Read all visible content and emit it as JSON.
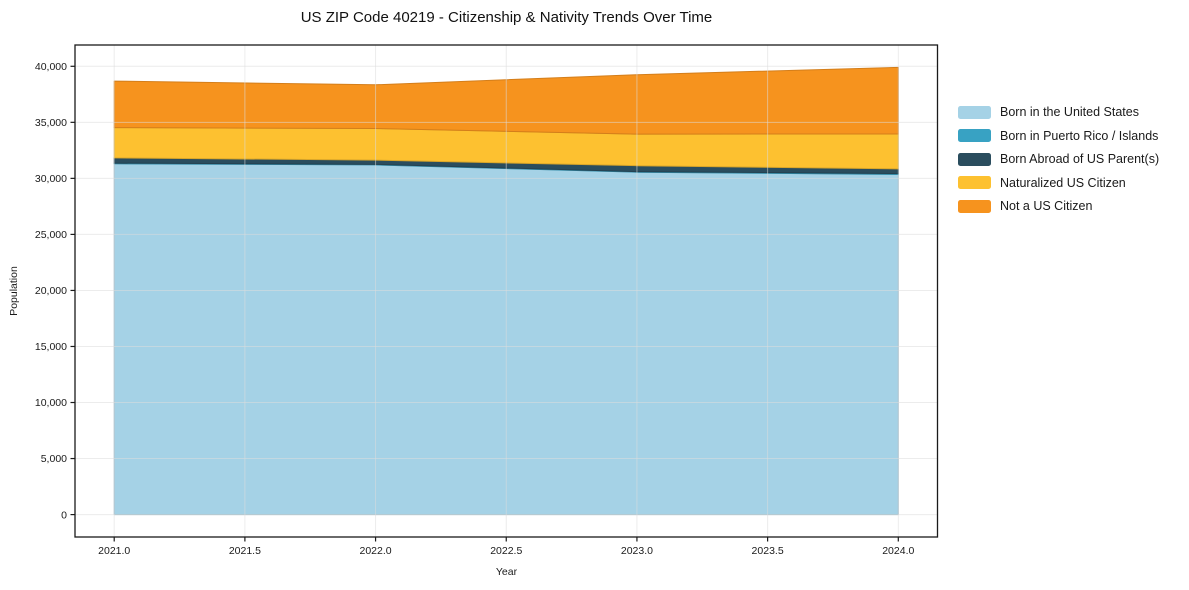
{
  "chart_data": {
    "type": "area",
    "stacked": true,
    "title": "US ZIP Code 40219 - Citizenship & Nativity Trends Over Time",
    "xlabel": "Year",
    "ylabel": "Population",
    "x": [
      2021,
      2022,
      2023,
      2024
    ],
    "series": [
      {
        "name": "Born in the United States",
        "color": "#a5d2e6",
        "values": [
          31300,
          31200,
          30550,
          30350
        ]
      },
      {
        "name": "Born in Puerto Rico / Islands",
        "color": "#38a2c3",
        "values": [
          60,
          50,
          50,
          80
        ]
      },
      {
        "name": "Born Abroad of US Parent(s)",
        "color": "#2a4d5e",
        "values": [
          470,
          380,
          530,
          420
        ]
      },
      {
        "name": "Naturalized US Citizen",
        "color": "#fdc130",
        "values": [
          2700,
          2820,
          2820,
          3110
        ]
      },
      {
        "name": "Not a US Citizen",
        "color": "#f6931e",
        "values": [
          4150,
          3900,
          5300,
          5940
        ]
      }
    ],
    "totals": [
      38680,
      38350,
      39250,
      39900
    ],
    "xlim": [
      2020.85,
      2024.15
    ],
    "ylim": [
      -2000,
      41900
    ],
    "xticks": {
      "values": [
        2021.0,
        2021.5,
        2022.0,
        2022.5,
        2023.0,
        2023.5,
        2024.0
      ],
      "labels": [
        "2021.0",
        "2021.5",
        "2022.0",
        "2022.5",
        "2023.0",
        "2023.5",
        "2024.0"
      ]
    },
    "yticks": {
      "values": [
        0,
        5000,
        10000,
        15000,
        20000,
        25000,
        30000,
        35000,
        40000
      ],
      "labels": [
        "0",
        "5,000",
        "10,000",
        "15,000",
        "20,000",
        "25,000",
        "30,000",
        "35,000",
        "40,000"
      ]
    },
    "grid": true,
    "legend_position": "right-outside",
    "colors": {
      "spine": "#1a1a1a",
      "grid": "#dcdcdc",
      "tick_text": "#1a1a1a",
      "background": "#ffffff"
    }
  }
}
